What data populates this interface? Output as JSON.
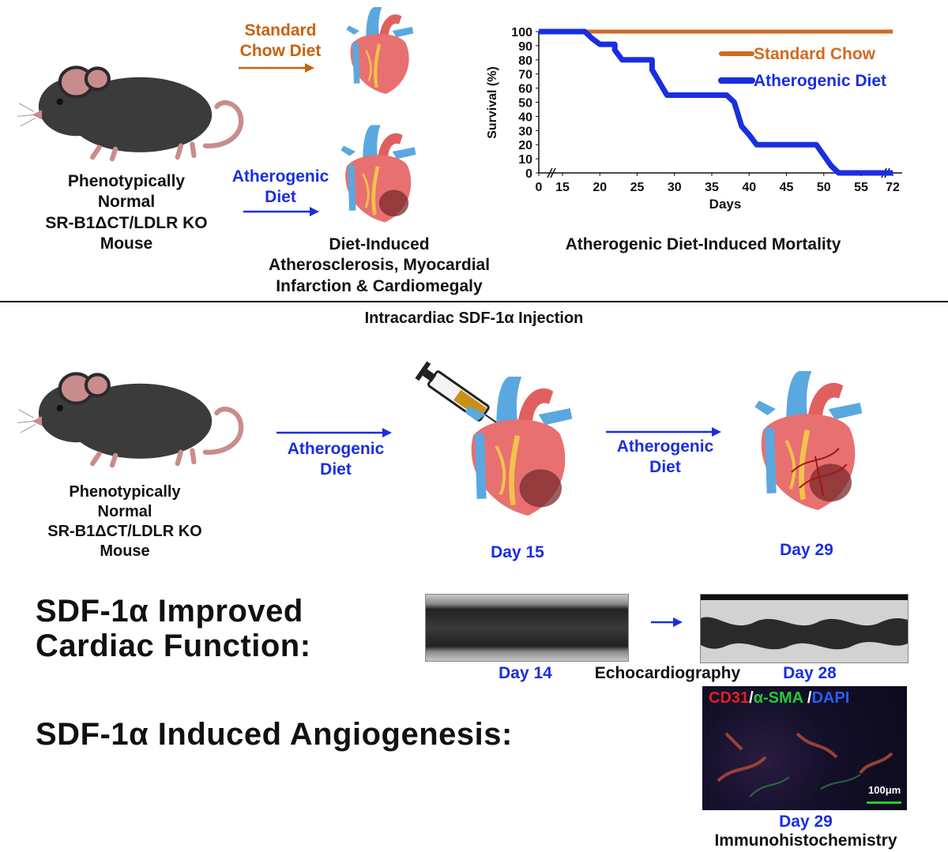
{
  "top": {
    "mouse_label": [
      "Phenotypically",
      "Normal",
      "SR-B1ΔCT/LDLR KO",
      "Mouse"
    ],
    "standard_diet_label": [
      "Standard",
      "Chow Diet"
    ],
    "atherogenic_diet_label": [
      "Atherogenic",
      "Diet"
    ],
    "outcome_label": [
      "Diet-Induced",
      "Atherosclerosis, Myocardial",
      "Infarction & Cardiomegaly"
    ],
    "chart_caption": "Atherogenic Diet-Induced Mortality"
  },
  "chart_data": {
    "type": "line",
    "ylabel": "Survival (%)",
    "xlabel": "Days",
    "ylim": [
      0,
      100
    ],
    "yticks": [
      "100",
      "90",
      "80",
      "70",
      "60",
      "50",
      "40",
      "30",
      "20",
      "10",
      "0"
    ],
    "xticks": [
      "0",
      "15",
      "20",
      "25",
      "30",
      "35",
      "40",
      "45",
      "50",
      "55",
      "72"
    ],
    "series": [
      {
        "name": "Standard Chow",
        "color": "#d2691e",
        "points": [
          [
            15,
            100
          ],
          [
            55,
            100
          ],
          [
            72,
            100
          ]
        ]
      },
      {
        "name": "Atherogenic Diet",
        "color": "#1a2ee0",
        "points": [
          [
            15,
            100
          ],
          [
            18,
            100
          ],
          [
            19,
            95
          ],
          [
            20,
            91
          ],
          [
            22,
            91
          ],
          [
            22,
            87
          ],
          [
            23,
            80
          ],
          [
            27,
            80
          ],
          [
            27,
            73
          ],
          [
            29,
            55
          ],
          [
            37,
            55
          ],
          [
            38,
            50
          ],
          [
            39,
            33
          ],
          [
            40,
            27
          ],
          [
            41,
            20
          ],
          [
            49,
            20
          ],
          [
            51,
            5
          ],
          [
            52,
            0
          ],
          [
            72,
            0
          ]
        ]
      }
    ]
  },
  "divider_title": "Intracardiac SDF-1α Injection",
  "middle": {
    "mouse_label": [
      "Phenotypically",
      "Normal",
      "SR-B1ΔCT/LDLR KO",
      "Mouse"
    ],
    "diet_label_1": [
      "Atherogenic",
      "Diet"
    ],
    "diet_label_2": [
      "Atherogenic",
      "Diet"
    ],
    "day_label_1": "Day 15",
    "day_label_2": "Day 29"
  },
  "bottom": {
    "cardiac_heading": [
      "SDF-1α Improved",
      "Cardiac Function:"
    ],
    "angio_heading": "SDF-1α Induced Angiogenesis:",
    "echo_day_1": "Day 14",
    "echo_label": "Echocardiography",
    "echo_day_2": "Day 28",
    "ihc_stain": {
      "cd31": "CD31",
      "sep1": "/",
      "sma": "α-SMA",
      "sep2": " /",
      "dapi": "DAPI"
    },
    "scale_bar": "100μm",
    "ihc_day": "Day 29",
    "ihc_label": "Immunohistochemistry"
  },
  "colors": {
    "blue": "#1a2ee0",
    "orange": "#d2691e",
    "red": "#e02020",
    "green": "#22cc33"
  }
}
